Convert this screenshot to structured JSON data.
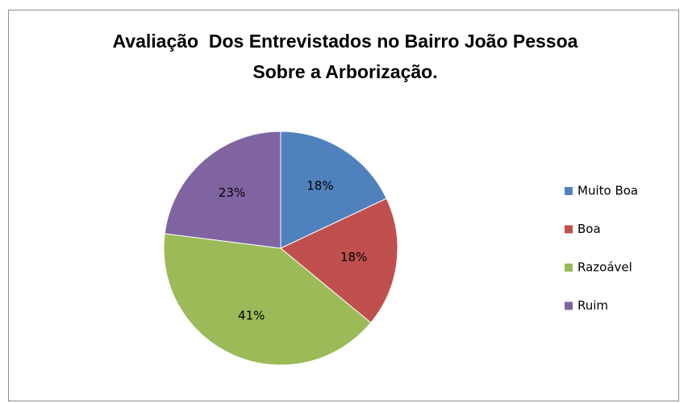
{
  "chart_data": {
    "type": "pie",
    "title": "Avaliação  Dos Entrevistados no Bairro João Pessoa Sobre a Arborização.",
    "categories": [
      "Muito Boa",
      "Boa",
      "Razoável",
      "Ruim"
    ],
    "values": [
      18,
      18,
      41,
      23
    ],
    "value_labels": [
      "18%",
      "18%",
      "41%",
      "23%"
    ],
    "colors": [
      "#4f81bd",
      "#c0504d",
      "#9bbb59",
      "#8064a2"
    ],
    "legend": "right"
  }
}
